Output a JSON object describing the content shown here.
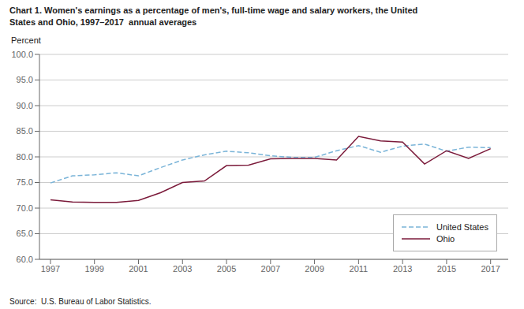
{
  "chart_data": {
    "type": "line",
    "title": "Chart 1. Women's earnings as a percentage of men's, full-time wage and salary workers, the United\nStates and Ohio, 1997–2017  annual averages",
    "ylabel": "Percent",
    "annotations": [
      "Source:  U.S. Bureau of Labor Statistics."
    ],
    "x": [
      1997,
      1998,
      1999,
      2000,
      2001,
      2002,
      2003,
      2004,
      2005,
      2006,
      2007,
      2008,
      2009,
      2010,
      2011,
      2012,
      2013,
      2014,
      2015,
      2016,
      2017
    ],
    "series": [
      {
        "name": "United States",
        "color": "#7ab4d8",
        "line_style": "dashed",
        "values": [
          74.9,
          76.3,
          76.5,
          76.9,
          76.3,
          77.9,
          79.4,
          80.4,
          81.1,
          80.8,
          80.2,
          79.9,
          79.9,
          81.2,
          82.2,
          80.9,
          82.1,
          82.5,
          81.1,
          81.9,
          81.8
        ]
      },
      {
        "name": "Ohio",
        "color": "#7b1a3a",
        "line_style": "solid",
        "values": [
          71.6,
          71.2,
          71.1,
          71.1,
          71.5,
          73.0,
          75.0,
          75.3,
          78.3,
          78.4,
          79.6,
          79.7,
          79.7,
          79.4,
          84.0,
          83.1,
          82.9,
          78.6,
          81.2,
          79.7,
          81.6
        ]
      }
    ],
    "xlim": [
      1996.5,
      2017.8
    ],
    "xticks": [
      1997,
      1999,
      2001,
      2003,
      2005,
      2007,
      2009,
      2011,
      2013,
      2015,
      2017
    ],
    "ylim": [
      60.0,
      100.0
    ],
    "yticks": [
      {
        "value": 60,
        "label": "60.0"
      },
      {
        "value": 65,
        "label": "65.0"
      },
      {
        "value": 70,
        "label": "70.0"
      },
      {
        "value": 75,
        "label": "75.0"
      },
      {
        "value": 80,
        "label": "80.0"
      },
      {
        "value": 85,
        "label": "85.0"
      },
      {
        "value": 90,
        "label": "90.0"
      },
      {
        "value": 95,
        "label": "95.0"
      },
      {
        "value": 100,
        "label": "100.0"
      }
    ],
    "grid": true,
    "legend": "lower right"
  }
}
